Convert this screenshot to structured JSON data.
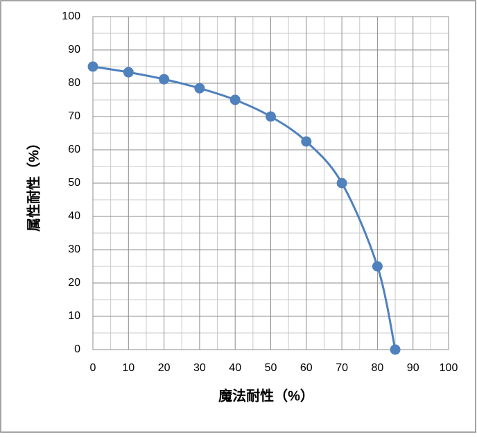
{
  "chart_data": {
    "type": "scatter",
    "line": "smooth",
    "xlabel": "魔法耐性（%）",
    "ylabel": "属性耐性（%）",
    "x": [
      0,
      10,
      20,
      30,
      40,
      50,
      60,
      70,
      80,
      85
    ],
    "series": [
      {
        "color": "#4f81bd",
        "values": [
          85,
          83.3,
          81.2,
          78.5,
          75,
          70,
          62.5,
          50,
          25,
          0
        ]
      }
    ],
    "xlim": [
      0,
      100
    ],
    "xticks": [
      0,
      10,
      20,
      30,
      40,
      50,
      60,
      70,
      80,
      90,
      100
    ],
    "ylim": [
      0,
      100
    ],
    "yticks": [
      0,
      10,
      20,
      30,
      40,
      50,
      60,
      70,
      80,
      90,
      100
    ],
    "grid": true,
    "minor_grid": true
  }
}
